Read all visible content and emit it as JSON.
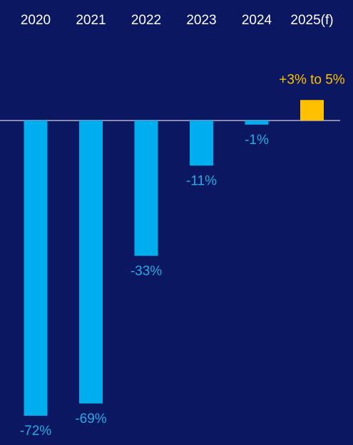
{
  "chart_data": {
    "type": "bar",
    "categories": [
      "2020",
      "2021",
      "2022",
      "2023",
      "2024",
      "2025(f)"
    ],
    "values": [
      -72,
      -69,
      -33,
      -11,
      -1,
      5
    ],
    "value_labels": [
      "-72%",
      "-69%",
      "-33%",
      "-11%",
      "-1%",
      "+3% to 5%"
    ],
    "colors": [
      "#00aeef",
      "#00aeef",
      "#00aeef",
      "#00aeef",
      "#00aeef",
      "#ffc000"
    ]
  }
}
